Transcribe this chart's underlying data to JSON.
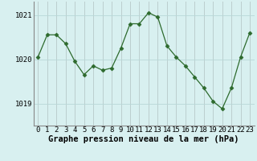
{
  "x": [
    0,
    1,
    2,
    3,
    4,
    5,
    6,
    7,
    8,
    9,
    10,
    11,
    12,
    13,
    14,
    15,
    16,
    17,
    18,
    19,
    20,
    21,
    22,
    23
  ],
  "y": [
    1020.05,
    1020.55,
    1020.55,
    1020.35,
    1019.95,
    1019.65,
    1019.85,
    1019.75,
    1019.8,
    1020.25,
    1020.8,
    1020.8,
    1021.05,
    1020.95,
    1020.3,
    1020.05,
    1019.85,
    1019.6,
    1019.35,
    1019.05,
    1018.88,
    1019.35,
    1020.05,
    1020.6
  ],
  "line_color": "#2d6a2d",
  "marker": "D",
  "marker_size": 2.5,
  "bg_color": "#d8f0f0",
  "grid_color": "#b8d8d8",
  "xlabel": "Graphe pression niveau de la mer (hPa)",
  "xlabel_fontsize": 7.5,
  "tick_fontsize": 6.5,
  "ylim": [
    1018.5,
    1021.3
  ],
  "yticks": [
    1019,
    1020,
    1021
  ],
  "xticks": [
    0,
    1,
    2,
    3,
    4,
    5,
    6,
    7,
    8,
    9,
    10,
    11,
    12,
    13,
    14,
    15,
    16,
    17,
    18,
    19,
    20,
    21,
    22,
    23
  ]
}
